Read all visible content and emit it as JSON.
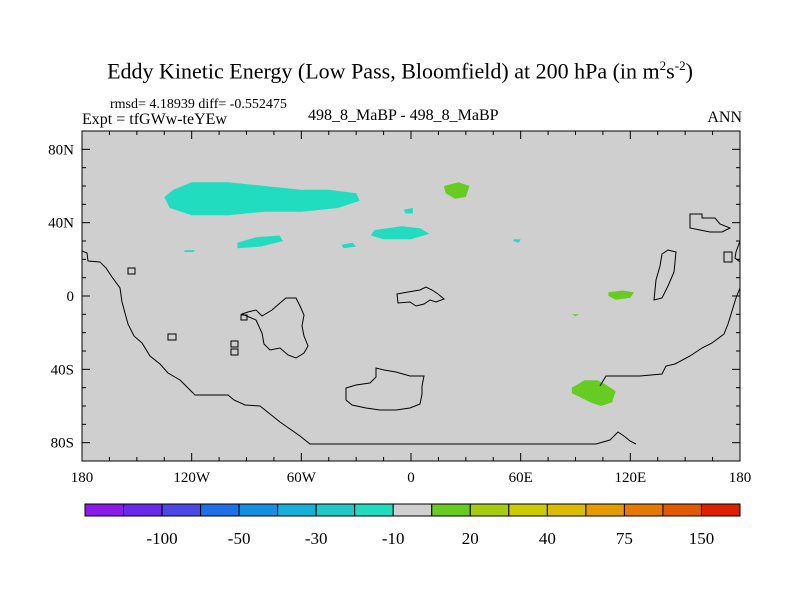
{
  "header": {
    "title_main": "Eddy Kinetic Energy (Low Pass, Bloomfield) at 200 hPa (in m",
    "title_exp1": "2",
    "title_mid": "s",
    "title_exp2": "-2",
    "title_end": ")",
    "stats": "rmsd= 4.18939 diff= -0.552475",
    "expt": "Expt = tfGWw-teYEw",
    "case": "498_8_MaBP - 498_8_MaBP",
    "season": "ANN"
  },
  "chart_data": {
    "type": "heatmap",
    "title": "Eddy Kinetic Energy (Low Pass, Bloomfield) at 200 hPa (in m2s-2)",
    "x_ticks": [
      {
        "value": -180,
        "label": "180"
      },
      {
        "value": -120,
        "label": "120W"
      },
      {
        "value": -60,
        "label": "60W"
      },
      {
        "value": 0,
        "label": "0"
      },
      {
        "value": 60,
        "label": "60E"
      },
      {
        "value": 120,
        "label": "120E"
      },
      {
        "value": 180,
        "label": "180"
      }
    ],
    "y_ticks": [
      {
        "value": 80,
        "label": "80N"
      },
      {
        "value": 40,
        "label": "40N"
      },
      {
        "value": 0,
        "label": "0"
      },
      {
        "value": -40,
        "label": "40S"
      },
      {
        "value": -80,
        "label": "80S"
      }
    ],
    "xlim": [
      -180,
      180
    ],
    "ylim": [
      -90,
      90
    ],
    "colorbar": {
      "colors": [
        "#8a1be8",
        "#6a28ea",
        "#4b49e6",
        "#1f6fe8",
        "#1490e2",
        "#17b0d8",
        "#1fc9c8",
        "#22dcc0",
        "#cfcfcf",
        "#66cc22",
        "#a6cc10",
        "#cccc00",
        "#ddbb00",
        "#e69b00",
        "#e67a00",
        "#e25a00",
        "#de2000"
      ],
      "labels": [
        "-100",
        "-50",
        "-30",
        "-10",
        "20",
        "40",
        "75",
        "150"
      ],
      "label_after_box": [
        1,
        3,
        5,
        7,
        9,
        11,
        13,
        15
      ]
    },
    "regions": [
      {
        "level": "-10 to 0",
        "color": "#22dcc0",
        "pts": [
          [
            -130,
            58
          ],
          [
            -120,
            62
          ],
          [
            -100,
            62
          ],
          [
            -80,
            60
          ],
          [
            -60,
            58
          ],
          [
            -45,
            58
          ],
          [
            -30,
            56
          ],
          [
            -28,
            52
          ],
          [
            -40,
            48
          ],
          [
            -60,
            46
          ],
          [
            -80,
            46
          ],
          [
            -100,
            44
          ],
          [
            -120,
            44
          ],
          [
            -132,
            48
          ],
          [
            -135,
            54
          ]
        ]
      },
      {
        "level": "-10 to 0",
        "color": "#22dcc0",
        "pts": [
          [
            -95,
            29
          ],
          [
            -85,
            32
          ],
          [
            -72,
            33
          ],
          [
            -70,
            30
          ],
          [
            -82,
            27
          ],
          [
            -95,
            26
          ]
        ]
      },
      {
        "level": "-10 to 0",
        "color": "#22dcc0",
        "pts": [
          [
            -20,
            36
          ],
          [
            -5,
            38
          ],
          [
            5,
            37
          ],
          [
            10,
            34
          ],
          [
            0,
            31
          ],
          [
            -15,
            31
          ],
          [
            -22,
            33
          ]
        ]
      },
      {
        "level": "-10 to 0",
        "color": "#22dcc0",
        "pts": [
          [
            -38,
            28
          ],
          [
            -32,
            29
          ],
          [
            -30,
            27
          ],
          [
            -37,
            26
          ]
        ]
      },
      {
        "level": "-10 to 0",
        "color": "#22dcc0",
        "pts": [
          [
            -4,
            47
          ],
          [
            1,
            48
          ],
          [
            1,
            45
          ],
          [
            -3,
            45
          ]
        ]
      },
      {
        "level": "-10 to 0",
        "color": "#22dcc0",
        "pts": [
          [
            -124,
            25
          ],
          [
            -118,
            25
          ],
          [
            -119,
            24
          ],
          [
            -124,
            24
          ]
        ]
      },
      {
        "level": "-10 to 0",
        "color": "#22dcc0",
        "pts": [
          [
            56,
            31
          ],
          [
            60,
            31
          ],
          [
            59,
            29
          ],
          [
            56,
            30
          ]
        ]
      },
      {
        "level": "10 to 20",
        "color": "#66cc22",
        "pts": [
          [
            18,
            60
          ],
          [
            26,
            62
          ],
          [
            32,
            60
          ],
          [
            30,
            54
          ],
          [
            24,
            53
          ],
          [
            19,
            56
          ]
        ]
      },
      {
        "level": "10 to 20",
        "color": "#66cc22",
        "pts": [
          [
            108,
            2
          ],
          [
            116,
            3
          ],
          [
            122,
            2
          ],
          [
            120,
            -1
          ],
          [
            112,
            -2
          ],
          [
            108,
            0
          ]
        ]
      },
      {
        "level": "10 to 20",
        "color": "#66cc22",
        "pts": [
          [
            88,
            -10
          ],
          [
            92,
            -10
          ],
          [
            90,
            -11
          ]
        ]
      },
      {
        "level": "10 to 20",
        "color": "#66cc22",
        "pts": [
          [
            88,
            -50
          ],
          [
            95,
            -46
          ],
          [
            102,
            -46
          ],
          [
            106,
            -48
          ],
          [
            112,
            -52
          ],
          [
            110,
            -58
          ],
          [
            104,
            -60
          ],
          [
            98,
            -58
          ],
          [
            92,
            -55
          ],
          [
            88,
            -53
          ]
        ]
      }
    ]
  },
  "colorbar_labels": [
    "-100",
    "-50",
    "-30",
    "-10",
    "20",
    "40",
    "75",
    "150"
  ]
}
